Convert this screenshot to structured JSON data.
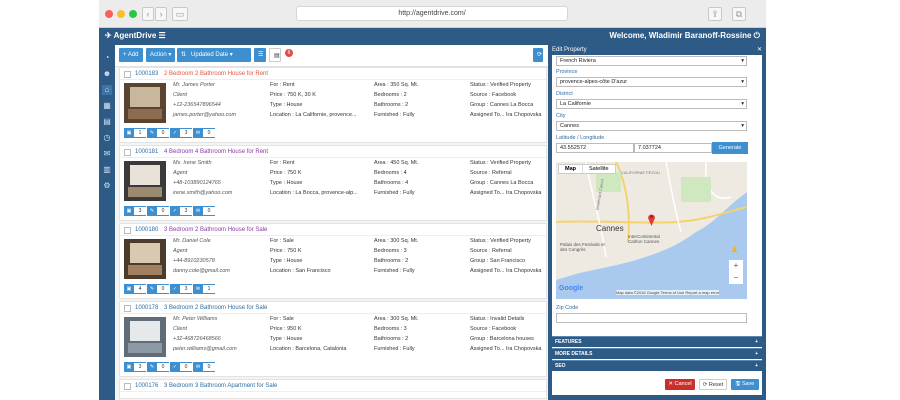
{
  "browser": {
    "url": "http://agentdrive.com/"
  },
  "header": {
    "brand": "AgentDrive",
    "welcome": "Welcome, Wladimir Baranoff-Rossine"
  },
  "toolbar": {
    "add": "+ Add",
    "action": "Action ▾",
    "sort": "Updated Date",
    "badge": "6"
  },
  "properties": [
    {
      "id": "1000183",
      "title": "2 Bedroom 2 Bathroom House for Rent",
      "title_color": "#e0573a",
      "agent": "Mr. James Porter",
      "role": "Client",
      "phone": "+12-236547896544",
      "email": "james.porter@yahoo.com",
      "for": "For : Rent",
      "price": "Price : 750 K, 30 K",
      "type": "Type : House",
      "location": "Location : La Californie, provence...",
      "area": "Area : 350 Sq. Mt.",
      "bedrooms": "Bedrooms : 2",
      "bathrooms": "Bathrooms : 2",
      "furnished": "Furnished : Fully",
      "status": "Status : Verified Property",
      "source": "Source : Facebook",
      "group": "Group : Cannes La Bocca",
      "assigned": "Assigned To... Ira Chopovska",
      "counts": [
        "1",
        "0",
        "3",
        "0"
      ]
    },
    {
      "id": "1000181",
      "title": "4 Bedroom 4 Bathroom House for Rent",
      "title_color": "#8a3aa8",
      "agent": "Ms. Irene Smith",
      "role": "Agent",
      "phone": "+48-103890124765",
      "email": "irene.smith@yahoo.com",
      "for": "For : Rent",
      "price": "Price : 750 K",
      "type": "Type : House",
      "location": "Location : La Bocca, provence-alp...",
      "area": "Area : 450 Sq. Mt.",
      "bedrooms": "Bedrooms : 4",
      "bathrooms": "Bathrooms : 4",
      "furnished": "Furnished : Fully",
      "status": "Status : Verified Property",
      "source": "Source : Referral",
      "group": "Group : Cannes La Bocca",
      "assigned": "Assigned To... Ira Chopovska",
      "counts": [
        "3",
        "0",
        "3",
        "0"
      ]
    },
    {
      "id": "1000180",
      "title": "3 Bedroom 2 Bathroom House for Sale",
      "title_color": "#8a3aa8",
      "agent": "Mr. Daniel Cole",
      "role": "Agent",
      "phone": "+44-8910230578",
      "email": "danny.cole@gmail.com",
      "for": "For : Sale",
      "price": "Price : 750 K",
      "type": "Type : House",
      "location": "Location : San Francisco",
      "area": "Area : 300 Sq. Mt.",
      "bedrooms": "Bedrooms : 3",
      "bathrooms": "Bathrooms : 2",
      "furnished": "Furnished : Fully",
      "status": "Status : Verified Property",
      "source": "Source : Referral",
      "group": "Group : San Francisco",
      "assigned": "Assigned To... Ira Chopovska",
      "counts": [
        "4",
        "0",
        "3",
        "1"
      ]
    },
    {
      "id": "1000178",
      "title": "3 Bedroom 2 Bathroom House for Sale",
      "title_color": "#2e6da4",
      "agent": "Mr. Peter Williams",
      "role": "Client",
      "phone": "+32-468726468566",
      "email": "peter.williams@gmail.com",
      "for": "For : Sale",
      "price": "Price : 950 K",
      "type": "Type : House",
      "location": "Location : Barcelona, Catalonia",
      "area": "Area : 300 Sq. Mt.",
      "bedrooms": "Bedrooms : 3",
      "bathrooms": "Bathrooms : 2",
      "furnished": "Furnished : Fully",
      "status": "Status : Invalid Details",
      "source": "Source : Facebook",
      "group": "Group : Barcelona houses",
      "assigned": "Assigned To... Ira Chopovska",
      "counts": [
        "3",
        "0",
        "0",
        "0"
      ]
    },
    {
      "id": "1000176",
      "title": "3 Bedroom 3 Bathroom Apartment for Sale",
      "title_color": "#2e6da4"
    }
  ],
  "panel": {
    "title": "Edit Property",
    "region_value": "French Riviera",
    "province_label": "Province",
    "province_value": "provence-alpes-côte D'azur",
    "district_label": "District",
    "district_value": "La Californie",
    "city_label": "City",
    "city_value": "Cannes",
    "latlng_label": "Latitude / Longitude",
    "lat": "43.552572",
    "lng": "7.037724",
    "generate": "Generate",
    "map_tab": "Map",
    "satellite_tab": "Satellite",
    "map_city": "Cannes",
    "map_label1": "Palais des Festivals et des Congrès",
    "map_label2": "InterContinental Carlton Cannes",
    "map_label3": "CALIFORNIE PEZOU",
    "map_label4": "Boulevard Carnot",
    "map_footer": "Map data ©2016 Google   Terms of Use   Report a map error",
    "google": "Google",
    "zip_label": "Zip Code",
    "acc1": "FEATURES",
    "acc2": "MORE DETAILS",
    "acc3": "SEO",
    "cancel": "✕ Cancel",
    "reset": "⟳ Reset",
    "save": "🖫 Save"
  },
  "colors": {
    "brand": "#2e5a86",
    "accent": "#3d8fcf",
    "green": "#5cb85c"
  }
}
